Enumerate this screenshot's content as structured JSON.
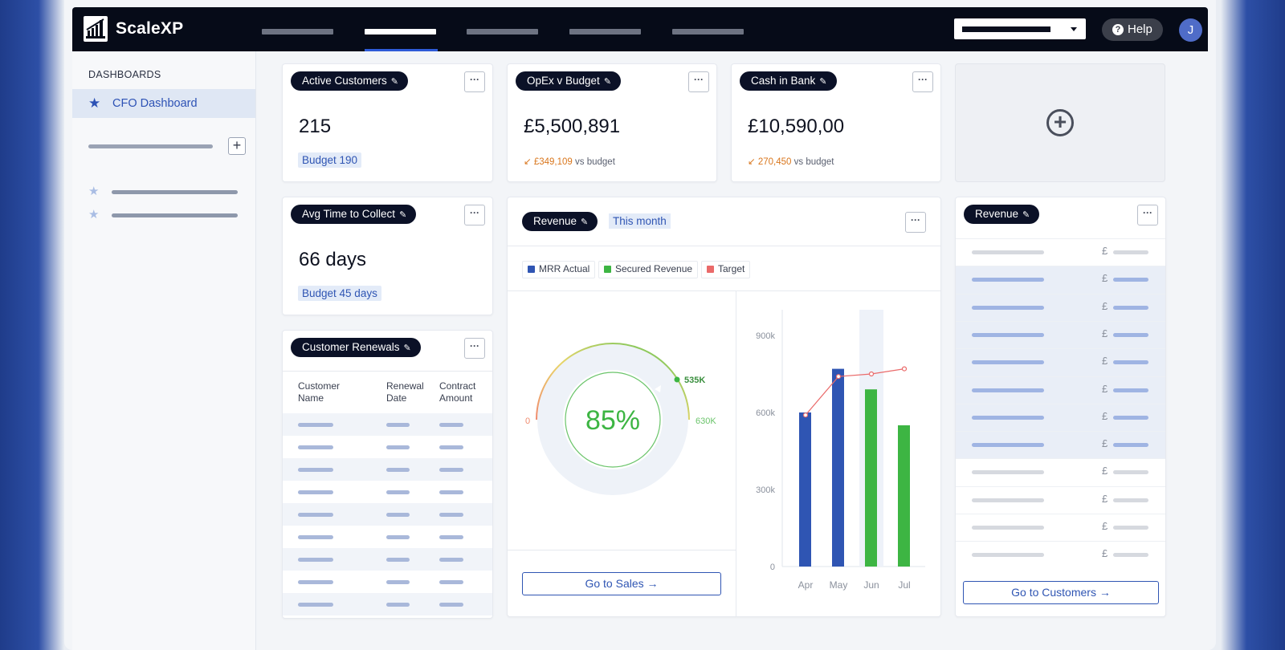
{
  "app": {
    "brand": "ScaleXP",
    "avatar_initial": "J",
    "help_label": "Help"
  },
  "sidebar": {
    "section_title": "DASHBOARDS",
    "active_item": "CFO Dashboard"
  },
  "cards": {
    "active_customers": {
      "title": "Active Customers",
      "value": "215",
      "budget": "Budget 190"
    },
    "opex": {
      "title": "OpEx v Budget",
      "value": "£5,500,891",
      "delta": "£349,109",
      "delta_suffix": "vs budget",
      "delta_arrow": "↙"
    },
    "cash": {
      "title": "Cash in Bank",
      "value": "£10,590,00",
      "delta": "270,450",
      "delta_suffix": "vs budget",
      "delta_arrow": "↙"
    },
    "avg_time": {
      "title": "Avg Time to Collect",
      "value": "66 days",
      "budget": "Budget 45 days"
    },
    "renewals": {
      "title": "Customer Renewals",
      "columns": [
        "Customer Name",
        "Renewal Date",
        "Contract Amount"
      ]
    },
    "revenue_main": {
      "title": "Revenue",
      "period": "This month",
      "legend": [
        "MRR Actual",
        "Secured Revenue",
        "Target"
      ],
      "gauge": {
        "percent": "85%",
        "start_label": "0",
        "mid_label": "535K",
        "end_label": "630K"
      },
      "cta": "Go to Sales →"
    },
    "revenue_side": {
      "title": "Revenue",
      "currency": "£",
      "cta": "Go to Customers →"
    }
  },
  "colors": {
    "accent": "#2f55b3",
    "mrr": "#2f55b3",
    "secured": "#3db543",
    "target": "#ea6a6a",
    "negative": "#d9761c"
  },
  "chart_data": {
    "type": "bar",
    "categories": [
      "Apr",
      "May",
      "Jun",
      "Jul"
    ],
    "series": [
      {
        "name": "MRR Actual",
        "values": [
          600000,
          770000,
          null,
          null
        ]
      },
      {
        "name": "Secured Revenue",
        "values": [
          null,
          null,
          690000,
          550000
        ]
      },
      {
        "name": "Target",
        "values": [
          590000,
          740000,
          750000,
          770000
        ]
      }
    ],
    "yticks": [
      "0",
      "300k",
      "600k",
      "900k"
    ],
    "ylim": [
      0,
      1000000
    ],
    "highlight_category": "Jun"
  }
}
